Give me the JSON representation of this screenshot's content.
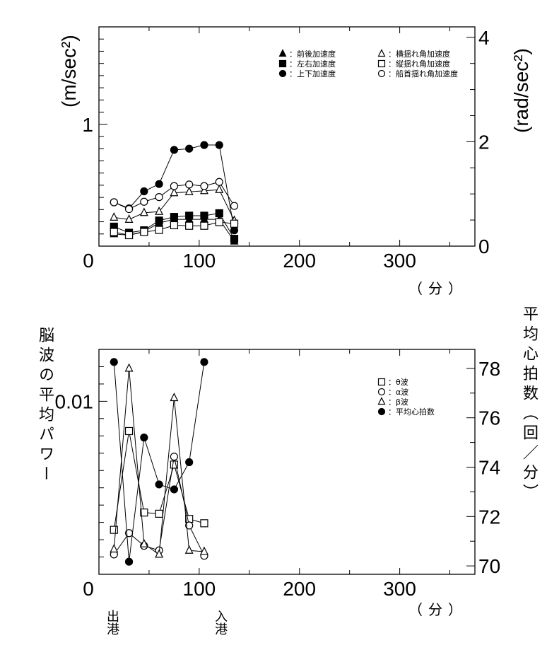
{
  "chart_data": [
    {
      "type": "line",
      "title": "",
      "xlabel": "（分）",
      "ylabel": "(m/sec²)",
      "ylabel_right": "(rad/sec²)",
      "xlim": [
        0,
        375
      ],
      "ylim": [
        0,
        1.8
      ],
      "ylim_right": [
        0,
        4.2
      ],
      "xticks": [
        "0",
        "100",
        "200",
        "300"
      ],
      "yticks": [
        "0",
        "1"
      ],
      "yticks_right": [
        "0",
        "2",
        "4"
      ],
      "legend_position": "top-right",
      "x": [
        15,
        30,
        45,
        60,
        75,
        90,
        105,
        120,
        135
      ],
      "series": [
        {
          "name": "前後加速度",
          "marker": "triangle-filled",
          "axis": "left",
          "values": [
            0.1,
            0.09,
            0.12,
            0.19,
            0.22,
            0.22,
            0.22,
            0.22,
            0.04
          ]
        },
        {
          "name": "左右加速度",
          "marker": "square-filled",
          "axis": "left",
          "values": [
            0.16,
            0.11,
            0.13,
            0.21,
            0.24,
            0.25,
            0.25,
            0.27,
            0.06
          ]
        },
        {
          "name": "上下加速度",
          "marker": "circle-filled",
          "axis": "left",
          "values": [
            0.36,
            0.31,
            0.45,
            0.51,
            0.79,
            0.8,
            0.83,
            0.83,
            0.13
          ]
        },
        {
          "name": "横揺れ角加速度",
          "marker": "triangle-open",
          "axis": "right",
          "values": [
            0.55,
            0.51,
            0.64,
            0.66,
            1.02,
            1.04,
            1.06,
            1.08,
            0.49
          ]
        },
        {
          "name": "縦揺れ角加速度",
          "marker": "square-open",
          "axis": "right",
          "values": [
            0.27,
            0.21,
            0.27,
            0.31,
            0.4,
            0.39,
            0.39,
            0.46,
            0.43
          ]
        },
        {
          "name": "船首揺れ角加速度",
          "marker": "circle-open",
          "axis": "right",
          "values": [
            0.84,
            0.71,
            0.85,
            0.94,
            1.15,
            1.18,
            1.15,
            1.23,
            0.77
          ]
        }
      ]
    },
    {
      "type": "line",
      "title": "",
      "xlabel": "（分）",
      "ylabel": "脳波の平均パワー",
      "ylabel_right": "平均心拍数（回／分）",
      "xlim": [
        0,
        375
      ],
      "ylim": [
        0,
        0.013
      ],
      "ylim_right": [
        69.66,
        78.77
      ],
      "xticks": [
        "0",
        "100",
        "200",
        "300"
      ],
      "yticks": [
        "0",
        "0.01"
      ],
      "yticks_right": [
        "70",
        "72",
        "74",
        "76",
        "78"
      ],
      "legend_position": "top-right",
      "annotations": [
        "出港",
        "入港"
      ],
      "x": [
        15,
        30,
        45,
        60,
        75,
        90,
        105
      ],
      "series": [
        {
          "name": "θ波",
          "marker": "square-open",
          "axis": "left",
          "values": [
            0.00257,
            0.00828,
            0.00357,
            0.0035,
            0.00634,
            0.0032,
            0.00295
          ]
        },
        {
          "name": "α波",
          "marker": "circle-open",
          "axis": "left",
          "values": [
            0.00115,
            0.00238,
            0.00165,
            0.00138,
            0.0068,
            0.00282,
            0.00107
          ]
        },
        {
          "name": "β波",
          "marker": "triangle-open",
          "axis": "left",
          "values": [
            0.00145,
            0.0119,
            0.00175,
            0.00115,
            0.0102,
            0.00138,
            0.00131
          ]
        },
        {
          "name": "平均心拍数",
          "marker": "circle-filled",
          "axis": "right",
          "values": [
            78.26,
            70.17,
            75.2,
            73.3,
            73.1,
            74.2,
            78.26
          ]
        }
      ]
    }
  ]
}
